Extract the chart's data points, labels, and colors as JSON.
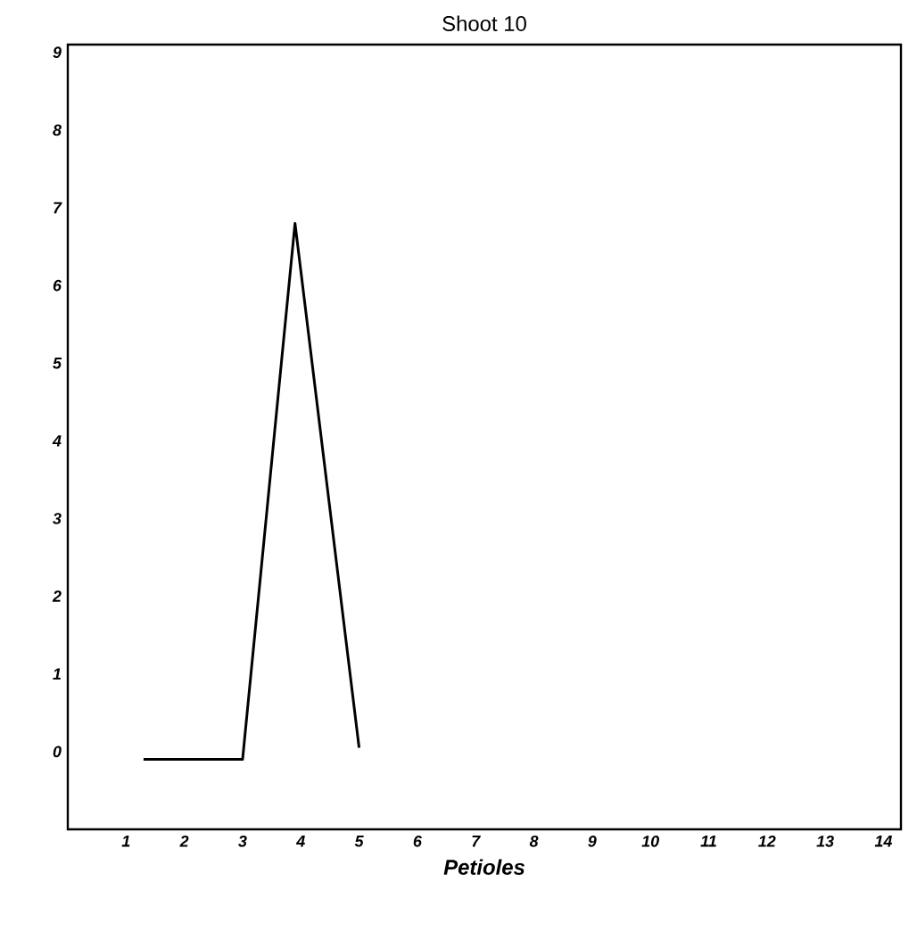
{
  "chart_data": {
    "type": "line",
    "title": "Shoot 10",
    "xlabel": "Petioles",
    "x": [
      1.3,
      3,
      3.9,
      5
    ],
    "series": [
      {
        "color": "#000000",
        "values": [
          -0.1,
          -0.1,
          6.8,
          0.05
        ]
      }
    ],
    "xlim": [
      0,
      14.3
    ],
    "ylim": [
      -1,
      9.1
    ],
    "xticks": [
      1,
      2,
      3,
      4,
      5,
      6,
      7,
      8,
      9,
      10,
      11,
      12,
      13,
      14
    ],
    "yticks": [
      0,
      1,
      2,
      3,
      4,
      5,
      6,
      7,
      8,
      9
    ],
    "grid": false,
    "marker": "none",
    "line_style": "solid"
  }
}
